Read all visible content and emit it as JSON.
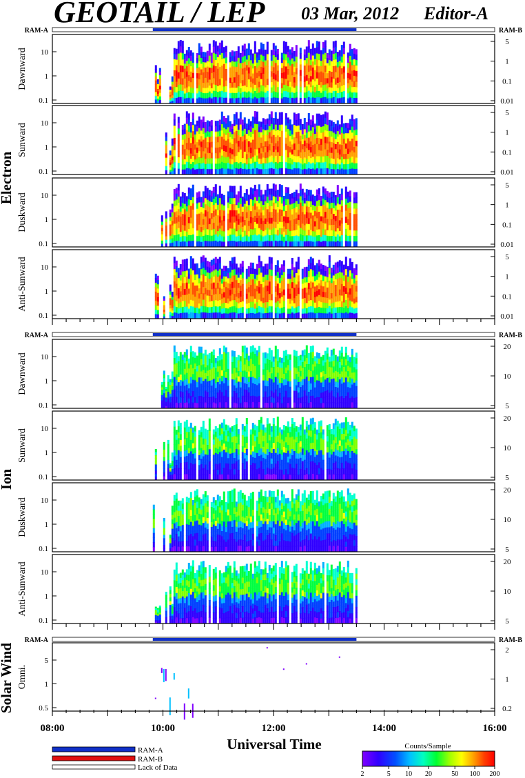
{
  "title": "GEOTAIL / LEP",
  "date": "03 Mar, 2012",
  "editor": "Editor-A",
  "ram_a_label": "RAM-A",
  "ram_b_label": "RAM-B",
  "xlabel": "Universal Time",
  "colorbar": {
    "title": "Counts/Sample",
    "ticks": [
      "2",
      "5",
      "10",
      "20",
      "50",
      "100",
      "200"
    ],
    "colors": [
      "#8000ff",
      "#3000ff",
      "#0040ff",
      "#00b0ff",
      "#00ffd0",
      "#00ff40",
      "#80ff00",
      "#ffff00",
      "#ffa000",
      "#ff5000",
      "#ff0000"
    ]
  },
  "legend": [
    {
      "label": "RAM-A",
      "color": "#1030c8"
    },
    {
      "label": "RAM-B",
      "color": "#e01010"
    },
    {
      "label": "Lack of Data",
      "color": "#ffffff"
    }
  ],
  "chart_data": [
    {
      "type": "heatmap",
      "group": "Electron",
      "panel": "Dawnward",
      "left_ticks": [
        "10",
        "1",
        "0.1"
      ],
      "right_ticks": [
        "5",
        "1",
        "0.1",
        "0.01"
      ],
      "data_start": "09:49",
      "data_end": "13:30"
    },
    {
      "type": "heatmap",
      "group": "Electron",
      "panel": "Sunward",
      "left_ticks": [
        "10",
        "1",
        "0.1"
      ],
      "right_ticks": [
        "5",
        "1",
        "0.1",
        "0.01"
      ],
      "data_start": "09:49",
      "data_end": "13:30"
    },
    {
      "type": "heatmap",
      "group": "Electron",
      "panel": "Duskward",
      "left_ticks": [
        "10",
        "1",
        "0.1"
      ],
      "right_ticks": [
        "5",
        "1",
        "0.1",
        "0.01"
      ],
      "data_start": "09:49",
      "data_end": "13:30"
    },
    {
      "type": "heatmap",
      "group": "Electron",
      "panel": "Anti-Sunward",
      "left_ticks": [
        "10",
        "1",
        "0.1"
      ],
      "right_ticks": [
        "5",
        "1",
        "0.1",
        "0.01"
      ],
      "data_start": "09:49",
      "data_end": "13:30"
    },
    {
      "type": "heatmap",
      "group": "Ion",
      "panel": "Dawnward",
      "left_ticks": [
        "10",
        "1",
        "0.1"
      ],
      "right_ticks": [
        "20",
        "10",
        "5"
      ],
      "data_start": "09:49",
      "data_end": "13:30"
    },
    {
      "type": "heatmap",
      "group": "Ion",
      "panel": "Sunward",
      "left_ticks": [
        "10",
        "1",
        "0.1"
      ],
      "right_ticks": [
        "20",
        "10",
        "5"
      ],
      "data_start": "09:49",
      "data_end": "13:30"
    },
    {
      "type": "heatmap",
      "group": "Ion",
      "panel": "Duskward",
      "left_ticks": [
        "10",
        "1",
        "0.1"
      ],
      "right_ticks": [
        "20",
        "10",
        "5"
      ],
      "data_start": "09:49",
      "data_end": "13:30"
    },
    {
      "type": "heatmap",
      "group": "Ion",
      "panel": "Anti-Sunward",
      "left_ticks": [
        "10",
        "1",
        "0.1"
      ],
      "right_ticks": [
        "20",
        "10",
        "5"
      ],
      "data_start": "09:49",
      "data_end": "13:30"
    },
    {
      "type": "heatmap",
      "group": "Solar Wind",
      "panel": "Omni.",
      "left_ticks": [
        "5",
        "1",
        "0.5"
      ],
      "right_ticks": [
        "2",
        "1",
        "0.2"
      ],
      "data_start": "09:49",
      "data_end": "13:30"
    }
  ],
  "x_axis": {
    "ticks": [
      "08:00",
      "10:00",
      "12:00",
      "14:00",
      "16:00"
    ],
    "range": [
      "08:00",
      "16:00"
    ]
  }
}
